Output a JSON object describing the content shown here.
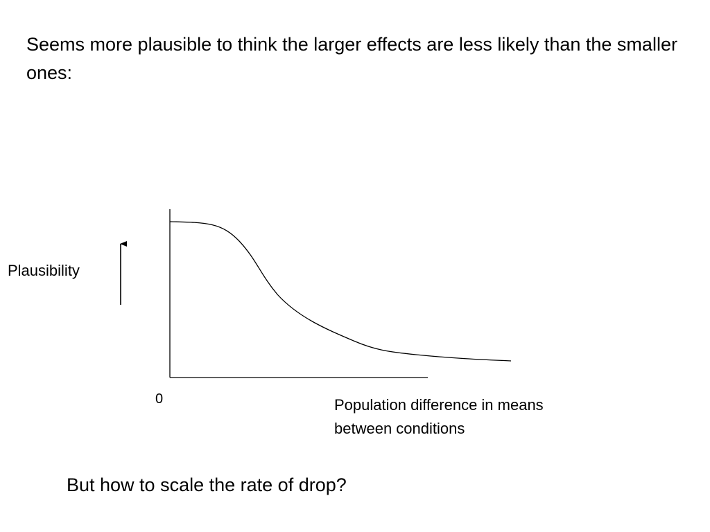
{
  "slide": {
    "heading": "Seems more plausible to think the larger effects are less likely than the smaller ones:",
    "question": "But how to scale the rate of drop?"
  },
  "diagram": {
    "y_label": "Plausibility",
    "origin_label": "0",
    "x_label_line1": "Population difference in means",
    "x_label_line2": "between conditions",
    "curve_shape": "monotonically decreasing plausibility curve: flat near zero, steep drop, then long low tail"
  }
}
